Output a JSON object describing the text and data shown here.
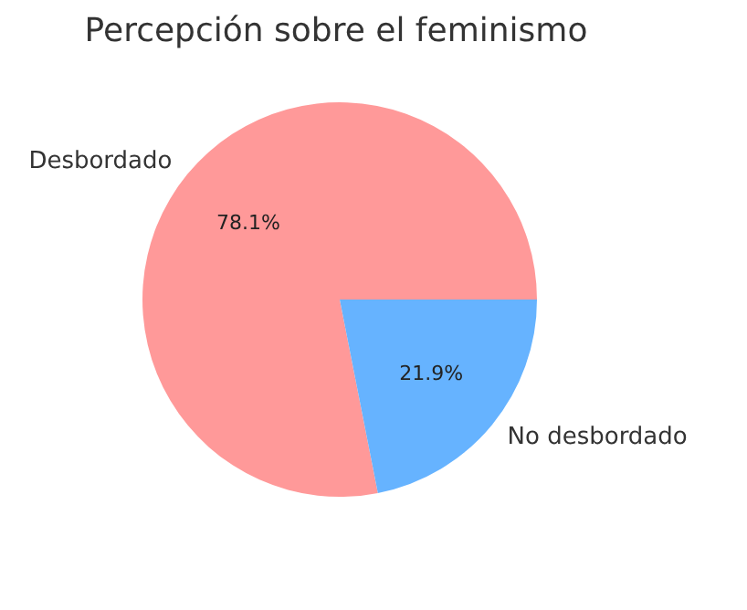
{
  "chart_data": {
    "type": "pie",
    "title": "Percepción sobre el feminismo",
    "categories": [
      "Desbordado",
      "No desbordado"
    ],
    "values": [
      78.1,
      21.9
    ],
    "colors": [
      "#ff9999",
      "#66b3ff"
    ],
    "value_labels": [
      "78.1%",
      "21.9%"
    ],
    "legend": false
  }
}
